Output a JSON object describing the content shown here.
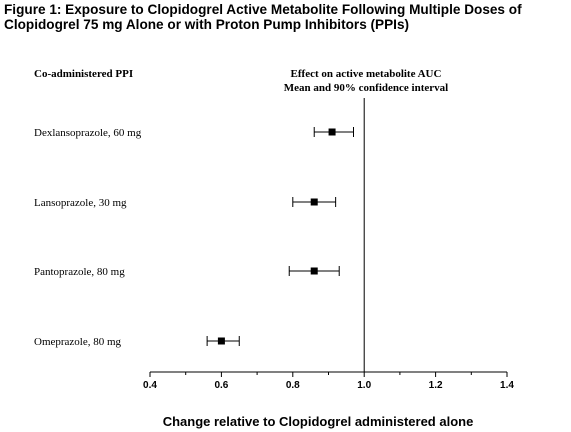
{
  "figure": {
    "title_lines": [
      "Figure 1: Exposure to Clopidogrel Active Metabolite Following Multiple Doses of",
      "Clopidogrel 75 mg Alone or with Proton Pump Inhibitors (PPIs)"
    ]
  },
  "chart_data": {
    "type": "forest",
    "title": "Figure 1: Exposure to Clopidogrel Active Metabolite Following Multiple Doses of Clopidogrel 75 mg Alone or with Proton Pump Inhibitors (PPIs)",
    "column_header": "Co-administered PPI",
    "effect_header": [
      "Effect on active metabolite AUC",
      "Mean and 90% confidence interval"
    ],
    "xlabel": "Change relative to Clopidogrel administered alone",
    "xlim": [
      0.4,
      1.4
    ],
    "xticks": [
      0.4,
      0.6,
      0.8,
      1.0,
      1.2,
      1.4
    ],
    "xtick_labels": [
      "0.4",
      "0.6",
      "0.8",
      "1.0",
      "1.2",
      "1.4"
    ],
    "reference_line": 1.0,
    "grid": false,
    "series": [
      {
        "label": "Dexlansoprazole, 60 mg",
        "mean": 0.91,
        "lower": 0.86,
        "upper": 0.97
      },
      {
        "label": "Lansoprazole, 30 mg",
        "mean": 0.86,
        "lower": 0.8,
        "upper": 0.92
      },
      {
        "label": "Pantoprazole, 80 mg",
        "mean": 0.86,
        "lower": 0.79,
        "upper": 0.93
      },
      {
        "label": "Omeprazole, 80 mg",
        "mean": 0.6,
        "lower": 0.56,
        "upper": 0.65
      }
    ]
  }
}
